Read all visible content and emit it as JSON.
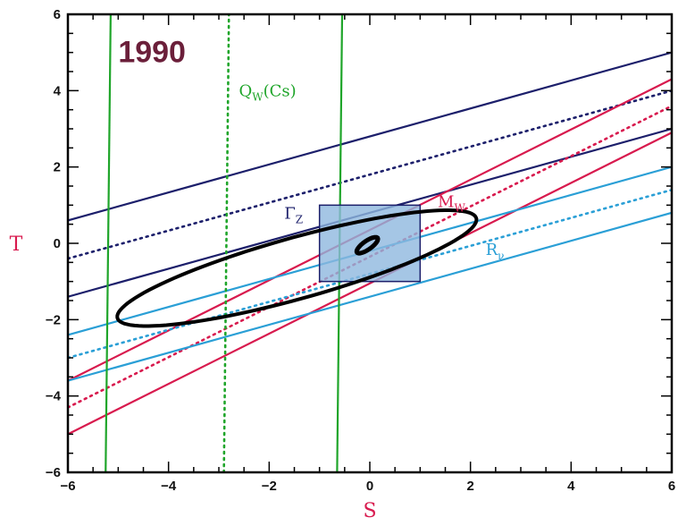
{
  "chart_data": {
    "type": "line",
    "year_label": "1990",
    "xlabel": "S",
    "ylabel": "T",
    "xlim": [
      -6,
      6
    ],
    "ylim": [
      -6,
      6
    ],
    "x_ticks": [
      -6,
      -4,
      -2,
      0,
      2,
      4,
      6
    ],
    "x_tick_labels": [
      "−6",
      "−4",
      "−2",
      "0",
      "2",
      "4",
      "6"
    ],
    "y_ticks": [
      -6,
      -4,
      -2,
      0,
      2,
      4,
      6
    ],
    "y_tick_labels": [
      "−6",
      "−4",
      "−2",
      "0",
      "2",
      "4",
      "6"
    ],
    "grid": false,
    "series": [
      {
        "name": "Γ_Z",
        "label_main": "Γ",
        "label_sub": "Z",
        "color": "#1c1f6b",
        "label_x": -1.7,
        "label_y": 0.65,
        "lines": [
          {
            "x": [
              -6,
              6
            ],
            "y": [
              0.6,
              5.0
            ],
            "style": "solid"
          },
          {
            "x": [
              -6,
              6
            ],
            "y": [
              -0.4,
              4.0
            ],
            "style": "dotted"
          },
          {
            "x": [
              -6,
              6
            ],
            "y": [
              -1.4,
              3.0
            ],
            "style": "solid"
          }
        ]
      },
      {
        "name": "M_W",
        "label_main": "M",
        "label_sub": "W",
        "color": "#d81a4e",
        "label_x": 1.35,
        "label_y": 0.95,
        "lines": [
          {
            "x": [
              -6,
              6
            ],
            "y": [
              -3.6,
              4.3
            ],
            "style": "solid"
          },
          {
            "x": [
              -6,
              6
            ],
            "y": [
              -4.3,
              3.6
            ],
            "style": "dotted"
          },
          {
            "x": [
              -6,
              6
            ],
            "y": [
              -5.0,
              2.9
            ],
            "style": "solid"
          }
        ]
      },
      {
        "name": "R_ν",
        "label_main": "R",
        "label_sub": "ν",
        "color": "#2a9fd6",
        "label_x": 2.3,
        "label_y": -0.3,
        "lines": [
          {
            "x": [
              -6,
              6
            ],
            "y": [
              -2.4,
              2.0
            ],
            "style": "solid"
          },
          {
            "x": [
              -6,
              6
            ],
            "y": [
              -3.0,
              1.4
            ],
            "style": "dotted"
          },
          {
            "x": [
              -6,
              6
            ],
            "y": [
              -3.6,
              0.8
            ],
            "style": "solid"
          }
        ]
      },
      {
        "name": "Q_W(Cs)",
        "label_main": "Q",
        "label_sub": "W",
        "label_tail": "(Cs)",
        "color": "#1fa52a",
        "label_x": -2.6,
        "label_y": 3.85,
        "lines": [
          {
            "x": [
              -5.25,
              -5.15
            ],
            "y": [
              -6,
              6
            ],
            "style": "solid"
          },
          {
            "x": [
              -2.9,
              -2.8
            ],
            "y": [
              -6,
              6
            ],
            "style": "dotted"
          },
          {
            "x": [
              -0.65,
              -0.55
            ],
            "y": [
              -6,
              6
            ],
            "style": "solid"
          }
        ]
      }
    ],
    "box": {
      "x": [
        -1,
        1
      ],
      "y": [
        -1,
        1
      ],
      "fill": "#8fb8de",
      "stroke": "#1c1f6b"
    },
    "ellipses": [
      {
        "cx": -1.45,
        "cy": -0.65,
        "a": 3.8,
        "b": 0.78,
        "angle_deg": 20.5,
        "color": "#000000"
      },
      {
        "cx": -0.05,
        "cy": -0.05,
        "a": 0.28,
        "b": 0.1,
        "angle_deg": 45,
        "color": "#000000"
      }
    ],
    "colors": {
      "axis": "#000000",
      "year_label": "#6b1f3a",
      "ylabel": "#d81a4e",
      "xlabel": "#d81a4e"
    }
  }
}
